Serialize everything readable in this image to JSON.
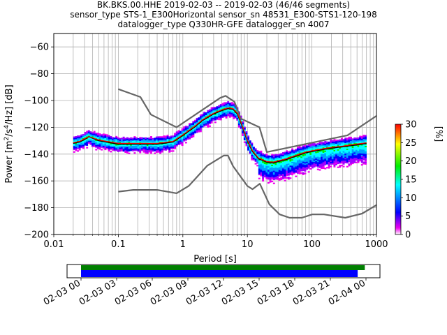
{
  "header": {
    "title_lines": [
      "BK.BKS.00.HHE   2019-02-03 -- 2019-02-03  (46/46 segments)",
      "sensor_type STS-1_E300Horizontal sensor_sn 48531_E300-STS1-120-198",
      "datalogger_type Q330HR-GFE datalogger_sn 4007"
    ]
  },
  "chart_data": [
    {
      "type": "heatmap",
      "title": "BK.BKS.00.HHE   2019-02-03 -- 2019-02-03  (46/46 segments)",
      "xlabel": "Period [s]",
      "ylabel_parts": [
        "Power [m",
        "2",
        "/s",
        "4",
        "/Hz] [dB]"
      ],
      "x_scale": "log",
      "xlim": [
        0.01,
        1000
      ],
      "ylim": [
        -200,
        -50
      ],
      "x_tick_labels": [
        "0.01",
        "0.1",
        "1",
        "10",
        "100",
        "1000"
      ],
      "x_ticks": [
        0.01,
        0.1,
        1,
        10,
        100,
        1000
      ],
      "y_ticks": [
        -200,
        -180,
        -160,
        -140,
        -120,
        -100,
        -80,
        -60
      ],
      "grid": true,
      "colorbar": {
        "label": "[%]",
        "range": [
          0,
          30
        ],
        "ticks": [
          0,
          5,
          10,
          15,
          20,
          25,
          30
        ],
        "colors": [
          "#ffffff",
          "#ee00ee",
          "#0000ff",
          "#00ffff",
          "#00ee00",
          "#ffff00",
          "#ff0000"
        ]
      },
      "series": [
        {
          "name": "",
          "role": "high noise model",
          "color": "#666666",
          "x": [
            0.1,
            0.22,
            0.32,
            0.8,
            3.8,
            4.6,
            6.3,
            7.9,
            15.4,
            20,
            354.8,
            1000
          ],
          "y": [
            -91.5,
            -97.4,
            -110.5,
            -120,
            -98,
            -96.5,
            -101,
            -113.5,
            -120,
            -138.5,
            -126,
            -111.5
          ]
        },
        {
          "name": "",
          "role": "low noise model",
          "color": "#666666",
          "x": [
            0.1,
            0.17,
            0.4,
            0.8,
            1.24,
            2.4,
            4.3,
            5,
            6,
            10,
            12,
            15.6,
            21.9,
            31.6,
            45,
            70,
            101,
            154,
            328,
            600,
            1000
          ],
          "y": [
            -168,
            -166.7,
            -166.7,
            -169.2,
            -163.7,
            -148.6,
            -141.1,
            -141.1,
            -149,
            -163.8,
            -166.2,
            -162.1,
            -177.5,
            -185,
            -187.5,
            -187.5,
            -185,
            -185,
            -187.5,
            -184.4,
            -178
          ]
        },
        {
          "name": "",
          "role": "mode",
          "color": "#000000",
          "x": [
            0.02,
            0.025,
            0.03,
            0.035,
            0.05,
            0.1,
            0.2,
            0.4,
            0.7,
            1.0,
            1.5,
            2.0,
            3.0,
            4.0,
            5.0,
            6.0,
            7.0,
            8.0,
            10,
            12,
            15,
            20,
            25,
            30,
            40,
            60,
            80,
            100,
            150,
            200,
            300,
            500,
            700
          ],
          "y": [
            -132,
            -131,
            -129,
            -127,
            -130,
            -132.5,
            -132.5,
            -132.5,
            -131,
            -126,
            -120,
            -115,
            -110,
            -107.5,
            -106,
            -106.5,
            -110,
            -117,
            -130,
            -138,
            -143.5,
            -146,
            -146.5,
            -145.5,
            -144,
            -141,
            -139,
            -138,
            -136.5,
            -135.5,
            -134.5,
            -133,
            -132
          ]
        },
        {
          "name": "",
          "role": "mean",
          "color": "#ff0000",
          "x": [
            0.02,
            0.025,
            0.03,
            0.035,
            0.05,
            0.1,
            0.2,
            0.4,
            0.7,
            1.0,
            1.5,
            2.0,
            3.0,
            4.0,
            5.0,
            6.0,
            7.0,
            8.0,
            10,
            12,
            15,
            20,
            25,
            30,
            40,
            60,
            80,
            100,
            150,
            200,
            300,
            500,
            700
          ],
          "y": [
            -131.5,
            -130.5,
            -128.5,
            -127,
            -129.5,
            -132,
            -132,
            -132,
            -130.5,
            -125.5,
            -119.5,
            -114.5,
            -109.5,
            -107,
            -105.5,
            -106,
            -109.5,
            -116.5,
            -129.5,
            -137.5,
            -143,
            -145.5,
            -146,
            -145,
            -143.5,
            -140.5,
            -138.5,
            -137.5,
            -136,
            -135,
            -134,
            -132.5,
            -131.5
          ]
        }
      ]
    },
    {
      "type": "gantt",
      "x_tick_labels": [
        "02-03 00",
        "02-03 03",
        "02-03 06",
        "02-03 09",
        "02-03 12",
        "02-03 15",
        "02-03 18",
        "02-03 21",
        "02-04 00"
      ],
      "bars": [
        {
          "role": "data coverage",
          "color": "#008000",
          "start_hour": 0,
          "end_hour": 23.9
        },
        {
          "role": "psd segments",
          "color": "#0000ff",
          "start_hour": 0,
          "end_hour": 23.3
        }
      ]
    }
  ]
}
